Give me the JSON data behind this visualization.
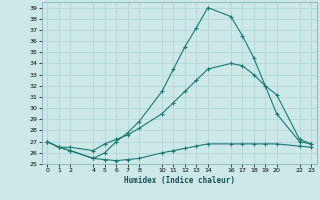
{
  "title": "",
  "xlabel": "Humidex (Indice chaleur)",
  "bg_color": "#cce8e8",
  "grid_color": "#b0d8d8",
  "line_color": "#1a7a6e",
  "ylim": [
    25,
    39.5
  ],
  "xlim": [
    -0.5,
    23.5
  ],
  "xticks": [
    0,
    1,
    2,
    4,
    5,
    6,
    7,
    8,
    10,
    11,
    12,
    13,
    14,
    16,
    17,
    18,
    19,
    20,
    22,
    23
  ],
  "yticks": [
    25,
    26,
    27,
    28,
    29,
    30,
    31,
    32,
    33,
    34,
    35,
    36,
    37,
    38,
    39
  ],
  "line1_x": [
    0,
    1,
    2,
    4,
    5,
    6,
    7,
    8,
    10,
    11,
    12,
    13,
    14,
    16,
    17,
    18,
    19,
    20,
    22,
    23
  ],
  "line1_y": [
    27.0,
    26.5,
    26.2,
    25.5,
    25.4,
    25.3,
    25.4,
    25.5,
    26.0,
    26.2,
    26.4,
    26.6,
    26.8,
    26.8,
    26.8,
    26.8,
    26.8,
    26.8,
    26.6,
    26.5
  ],
  "line2_x": [
    0,
    1,
    2,
    4,
    5,
    6,
    7,
    8,
    10,
    11,
    12,
    13,
    14,
    16,
    17,
    18,
    19,
    20,
    22,
    23
  ],
  "line2_y": [
    27.0,
    26.5,
    26.5,
    26.2,
    26.8,
    27.2,
    27.6,
    28.2,
    29.5,
    30.5,
    31.5,
    32.5,
    33.5,
    34.0,
    33.8,
    33.0,
    32.0,
    31.2,
    27.2,
    26.8
  ],
  "line3_x": [
    0,
    1,
    2,
    4,
    5,
    6,
    7,
    8,
    10,
    11,
    12,
    13,
    14,
    16,
    17,
    18,
    19,
    20,
    22,
    23
  ],
  "line3_y": [
    27.0,
    26.5,
    26.2,
    25.5,
    26.0,
    27.0,
    27.8,
    28.8,
    31.5,
    33.5,
    35.5,
    37.2,
    39.0,
    38.2,
    36.5,
    34.5,
    32.0,
    29.5,
    27.0,
    26.8
  ]
}
